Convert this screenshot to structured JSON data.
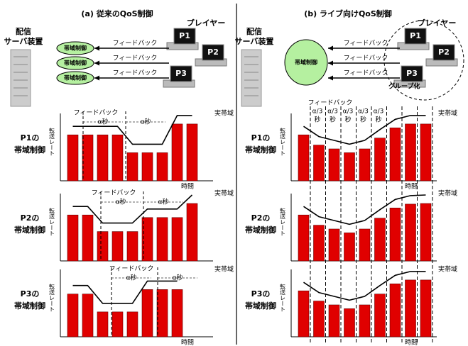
{
  "panels": [
    {
      "title": "(a) 従来のQoS制御",
      "server": [
        "配信",
        "サーバ装置"
      ],
      "player_label": "プレイヤー",
      "players": [
        "P1",
        "P2",
        "P3"
      ],
      "controls": [
        "帯域制御",
        "帯域制御",
        "帯域制御"
      ],
      "feedback": [
        "フィードバック",
        "フィードバック",
        "フィードバック"
      ],
      "charts": [
        {
          "label": [
            "P1の",
            "帯域制御"
          ],
          "y_label": "転送レート",
          "x_label": "時間",
          "band_label": "実帯域",
          "feedback_note": "フィードバック",
          "alpha_notes": [
            "α秒",
            "α秒"
          ],
          "rates": [
            72,
            72,
            72,
            72,
            44,
            44,
            44,
            89,
            89
          ]
        },
        {
          "label": [
            "P2の",
            "帯域制御"
          ],
          "y_label": "転送レート",
          "band_label": "実帯域",
          "feedback_note": "フィードバック",
          "alpha_notes": [
            "α秒",
            "α秒"
          ],
          "rates": [
            72,
            72,
            46,
            46,
            46,
            68,
            68,
            68,
            90
          ]
        },
        {
          "label": [
            "P3の",
            "帯域制御"
          ],
          "y_label": "転送レート",
          "x_label": "時間",
          "band_label": "実帯域",
          "feedback_note": "フィードバック",
          "alpha_notes": [
            "α秒",
            "α秒"
          ],
          "rates": [
            67,
            67,
            39,
            39,
            39,
            74,
            74,
            74
          ]
        }
      ]
    },
    {
      "title": "(b) ライブ向けQoS制御",
      "server": [
        "配信",
        "サーバ装置"
      ],
      "player_label": "プレイヤー",
      "players": [
        "P1",
        "P2",
        "P3"
      ],
      "controls": [
        "帯域制御"
      ],
      "feedback": [
        "フィードバック",
        "フィードバック",
        "フィードバック"
      ],
      "group_label": "グループ化",
      "charts": [
        {
          "label": [
            "P1の",
            "帯域制御"
          ],
          "y_label": "転送レート",
          "x_label": "時間",
          "band_label": "実帯域",
          "feedback_note": "フィードバック",
          "alpha_notes": [
            [
              "α/3",
              "秒"
            ],
            [
              "α/3",
              "秒"
            ],
            [
              "α/3",
              "秒"
            ],
            [
              "α/3",
              "秒"
            ],
            [
              "α/3",
              "秒"
            ]
          ],
          "rates": [
            72,
            56,
            50,
            44,
            50,
            67,
            83,
            89,
            89
          ]
        },
        {
          "label": [
            "P2の",
            "帯域制御"
          ],
          "y_label": "転送レート",
          "band_label": "実帯域",
          "rates": [
            72,
            56,
            50,
            44,
            50,
            67,
            83,
            89,
            90
          ]
        },
        {
          "label": [
            "P3の",
            "帯域制御"
          ],
          "y_label": "転送レート",
          "x_label": "時間",
          "band_label": "実帯域",
          "rates": [
            72,
            56,
            50,
            44,
            50,
            67,
            83,
            89,
            89
          ]
        }
      ]
    }
  ]
}
